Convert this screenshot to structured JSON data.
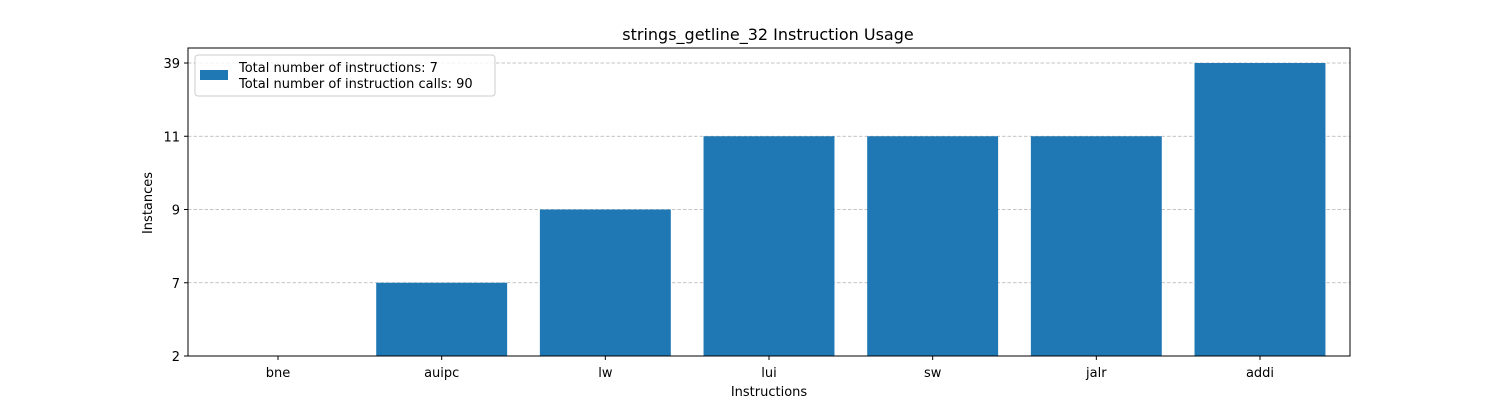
{
  "chart_data": {
    "type": "bar",
    "title": "strings_getline_32 Instruction Usage",
    "xlabel": "Instructions",
    "ylabel": "Instances",
    "categories": [
      "bne",
      "auipc",
      "lw",
      "lui",
      "sw",
      "jalr",
      "addi"
    ],
    "series": [
      {
        "name": "",
        "values": [
          2,
          7,
          9,
          11,
          11,
          11,
          39
        ],
        "color": "#1f77b4"
      }
    ],
    "y_axis": {
      "scale": "categorical-rank",
      "ticks": [
        "2",
        "7",
        "9",
        "11",
        "39"
      ],
      "ylim": [
        "2",
        "39"
      ]
    },
    "grid": {
      "y": true,
      "x": false,
      "style": "dashed",
      "color": "#b0b0b0"
    },
    "legend": {
      "placement": "top-left",
      "lines": [
        "Total number of instructions: 7",
        "Total number of instruction calls: 90"
      ],
      "color": "#1f77b4"
    }
  }
}
